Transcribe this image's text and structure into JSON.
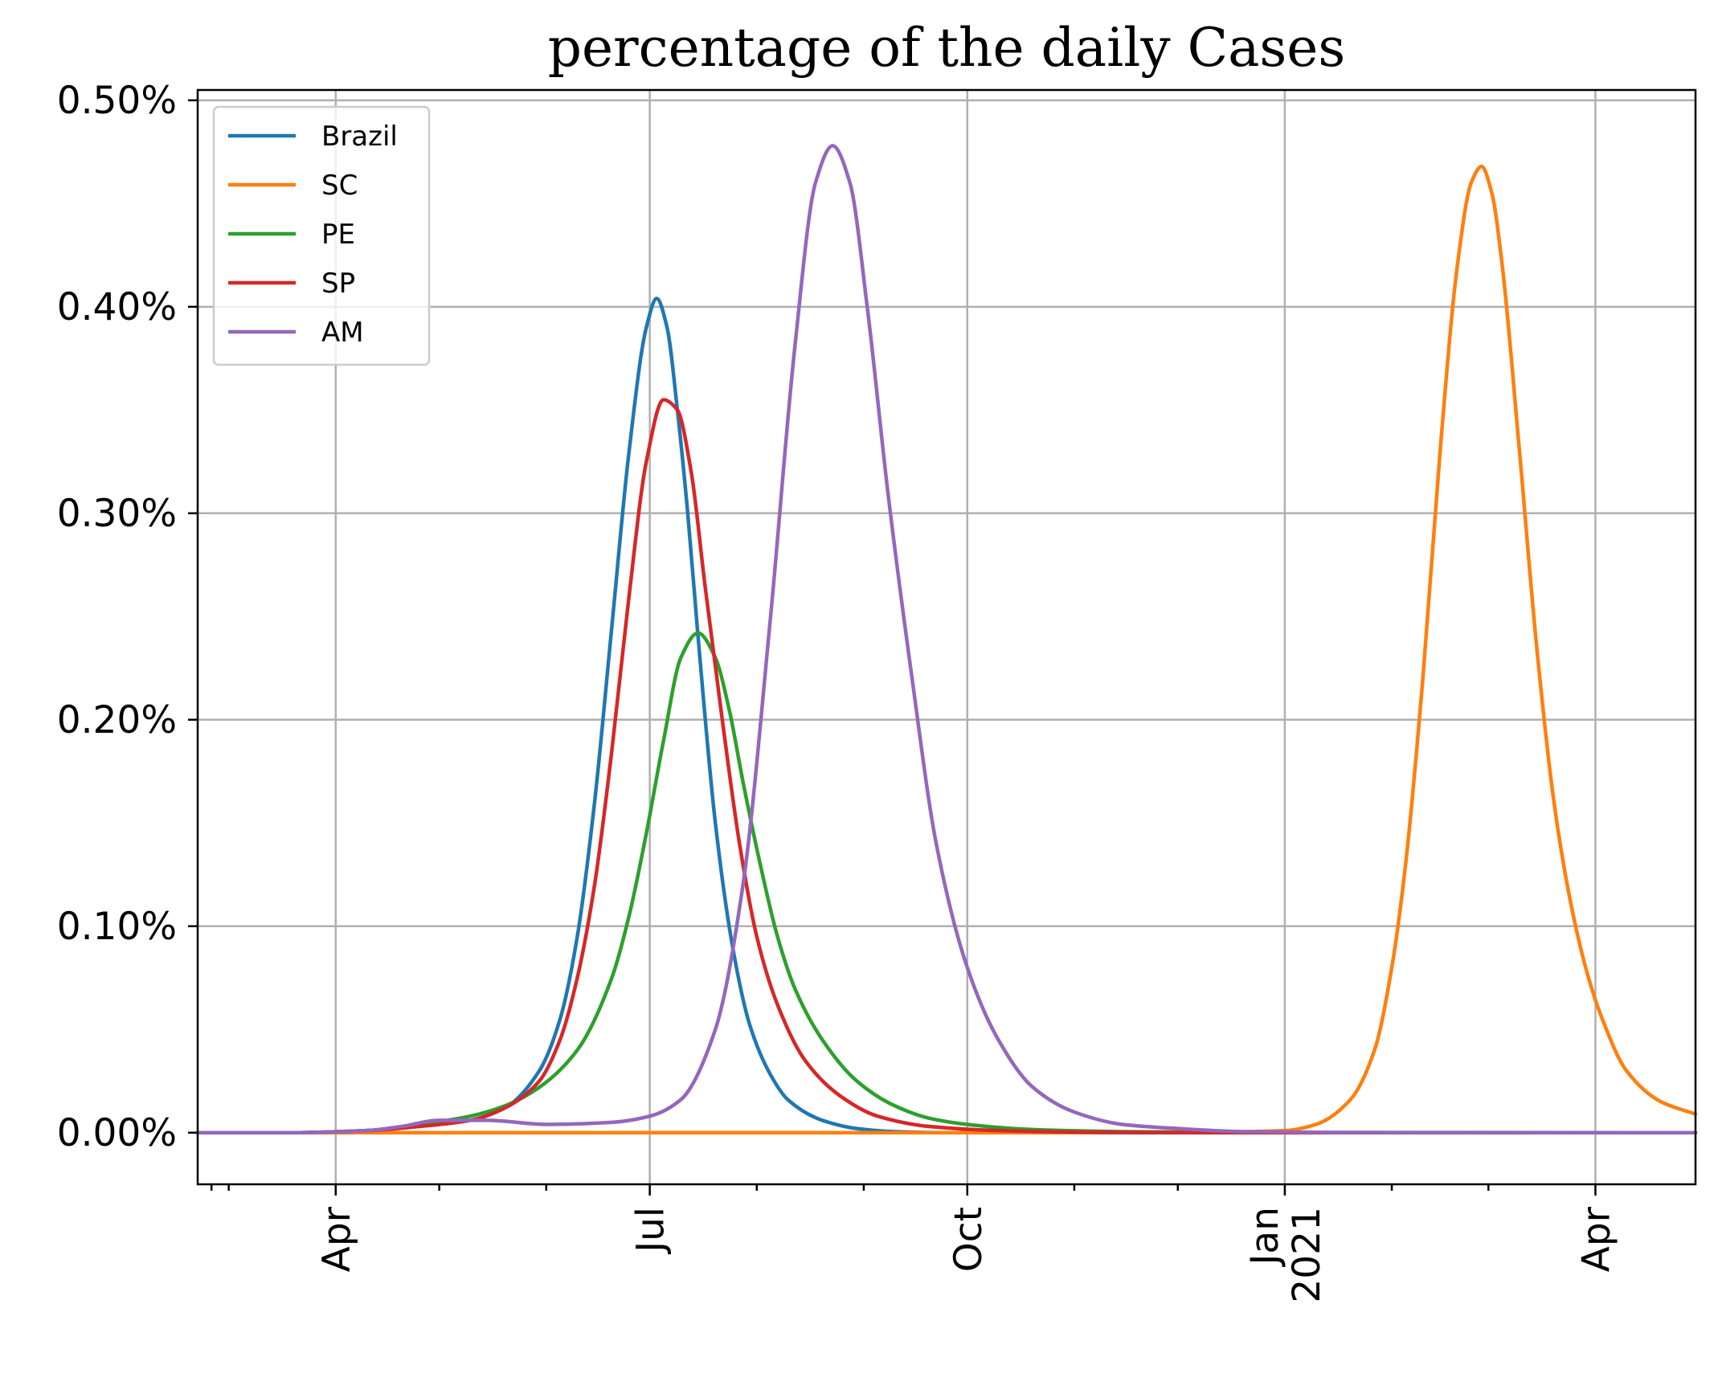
{
  "chart_data": {
    "type": "line",
    "title": "percentage of the daily Cases",
    "xlabel": "",
    "ylabel": "",
    "x_axis_type": "date",
    "xlim": [
      "2020-02-21",
      "2021-04-30"
    ],
    "ylim": [
      -0.025,
      0.505
    ],
    "y_unit": "%",
    "grid": true,
    "legend_position": "top-left",
    "x_major_ticks": [
      {
        "date": "2020-04-01",
        "label": "Apr"
      },
      {
        "date": "2020-07-01",
        "label": "Jul"
      },
      {
        "date": "2020-10-01",
        "label": "Oct"
      },
      {
        "date": "2021-01-01",
        "label": "Jan\n2021"
      },
      {
        "date": "2021-04-01",
        "label": "Apr"
      }
    ],
    "x_minor_ticks": [
      "2020-02-25",
      "2020-03-01",
      "2020-05-01",
      "2020-06-01",
      "2020-08-01",
      "2020-09-01",
      "2020-11-01",
      "2020-12-01",
      "2021-02-01",
      "2021-03-01"
    ],
    "y_ticks": [
      {
        "value": 0.0,
        "label": "0.00%"
      },
      {
        "value": 0.1,
        "label": "0.10%"
      },
      {
        "value": 0.2,
        "label": "0.20%"
      },
      {
        "value": 0.3,
        "label": "0.30%"
      },
      {
        "value": 0.4,
        "label": "0.40%"
      },
      {
        "value": 0.5,
        "label": "0.50%"
      }
    ],
    "series": [
      {
        "name": "Brazil",
        "color": "#1f77b4",
        "x": [
          "2020-02-21",
          "2020-03-20",
          "2020-04-10",
          "2020-04-25",
          "2020-05-10",
          "2020-05-20",
          "2020-05-30",
          "2020-06-05",
          "2020-06-10",
          "2020-06-15",
          "2020-06-20",
          "2020-06-25",
          "2020-06-30",
          "2020-07-03",
          "2020-07-06",
          "2020-07-09",
          "2020-07-12",
          "2020-07-15",
          "2020-07-20",
          "2020-07-25",
          "2020-07-30",
          "2020-08-05",
          "2020-08-10",
          "2020-08-20",
          "2020-08-30",
          "2020-09-10",
          "2020-09-25",
          "2020-10-15",
          "2020-11-15",
          "2021-01-01",
          "2021-04-30"
        ],
        "y": [
          0.0,
          0.0,
          0.001,
          0.003,
          0.006,
          0.012,
          0.03,
          0.055,
          0.095,
          0.16,
          0.245,
          0.33,
          0.39,
          0.404,
          0.39,
          0.35,
          0.3,
          0.24,
          0.15,
          0.09,
          0.052,
          0.028,
          0.016,
          0.006,
          0.002,
          0.0005,
          0.0,
          0.0,
          0.0,
          0.0,
          0.0
        ]
      },
      {
        "name": "SC",
        "color": "#ff7f0e",
        "x": [
          "2020-02-21",
          "2020-11-01",
          "2020-12-20",
          "2021-01-01",
          "2021-01-10",
          "2021-01-20",
          "2021-01-27",
          "2021-02-01",
          "2021-02-05",
          "2021-02-10",
          "2021-02-15",
          "2021-02-20",
          "2021-02-24",
          "2021-02-27",
          "2021-03-02",
          "2021-03-05",
          "2021-03-10",
          "2021-03-15",
          "2021-03-20",
          "2021-03-25",
          "2021-03-30",
          "2021-04-03",
          "2021-04-10",
          "2021-04-20",
          "2021-04-30"
        ],
        "y": [
          0.0,
          0.0,
          0.0005,
          0.001,
          0.004,
          0.016,
          0.04,
          0.08,
          0.13,
          0.22,
          0.33,
          0.42,
          0.46,
          0.468,
          0.455,
          0.42,
          0.33,
          0.235,
          0.16,
          0.11,
          0.075,
          0.055,
          0.03,
          0.015,
          0.009
        ]
      },
      {
        "name": "PE",
        "color": "#2ca02c",
        "x": [
          "2020-02-21",
          "2020-03-20",
          "2020-04-10",
          "2020-04-25",
          "2020-05-10",
          "2020-05-20",
          "2020-05-30",
          "2020-06-10",
          "2020-06-20",
          "2020-06-25",
          "2020-06-30",
          "2020-07-05",
          "2020-07-10",
          "2020-07-15",
          "2020-07-20",
          "2020-07-24",
          "2020-07-28",
          "2020-08-02",
          "2020-08-07",
          "2020-08-12",
          "2020-08-20",
          "2020-08-30",
          "2020-09-10",
          "2020-09-20",
          "2020-10-01",
          "2020-10-20",
          "2020-11-15",
          "2020-12-15",
          "2021-04-30"
        ],
        "y": [
          0.0,
          0.0,
          0.001,
          0.004,
          0.008,
          0.013,
          0.022,
          0.04,
          0.075,
          0.105,
          0.145,
          0.19,
          0.23,
          0.242,
          0.23,
          0.205,
          0.17,
          0.13,
          0.095,
          0.07,
          0.045,
          0.025,
          0.013,
          0.007,
          0.004,
          0.0015,
          0.0005,
          0.0001,
          0.0
        ]
      },
      {
        "name": "SP",
        "color": "#d62728",
        "x": [
          "2020-02-21",
          "2020-03-20",
          "2020-04-10",
          "2020-04-25",
          "2020-05-10",
          "2020-05-20",
          "2020-05-30",
          "2020-06-05",
          "2020-06-10",
          "2020-06-15",
          "2020-06-20",
          "2020-06-25",
          "2020-06-30",
          "2020-07-05",
          "2020-07-09",
          "2020-07-13",
          "2020-07-17",
          "2020-07-22",
          "2020-07-27",
          "2020-08-01",
          "2020-08-07",
          "2020-08-15",
          "2020-08-25",
          "2020-09-05",
          "2020-09-20",
          "2020-10-10",
          "2020-11-10",
          "2020-12-15",
          "2021-04-30"
        ],
        "y": [
          0.0,
          0.0,
          0.001,
          0.003,
          0.006,
          0.012,
          0.025,
          0.045,
          0.075,
          0.12,
          0.185,
          0.26,
          0.325,
          0.355,
          0.35,
          0.32,
          0.265,
          0.2,
          0.14,
          0.095,
          0.062,
          0.035,
          0.018,
          0.008,
          0.003,
          0.001,
          0.0002,
          0.0,
          0.0
        ]
      },
      {
        "name": "AM",
        "color": "#9467bd",
        "x": [
          "2020-02-21",
          "2020-03-20",
          "2020-04-10",
          "2020-04-20",
          "2020-05-01",
          "2020-05-15",
          "2020-06-01",
          "2020-06-20",
          "2020-07-01",
          "2020-07-10",
          "2020-07-20",
          "2020-07-28",
          "2020-08-05",
          "2020-08-12",
          "2020-08-18",
          "2020-08-23",
          "2020-08-28",
          "2020-09-02",
          "2020-09-08",
          "2020-09-15",
          "2020-09-22",
          "2020-10-01",
          "2020-10-10",
          "2020-10-20",
          "2020-11-01",
          "2020-11-15",
          "2020-12-01",
          "2020-12-20",
          "2021-01-15",
          "2021-04-30"
        ],
        "y": [
          0.0,
          0.0,
          0.001,
          0.003,
          0.006,
          0.006,
          0.004,
          0.005,
          0.008,
          0.016,
          0.05,
          0.12,
          0.25,
          0.38,
          0.46,
          0.478,
          0.46,
          0.4,
          0.31,
          0.22,
          0.14,
          0.08,
          0.045,
          0.022,
          0.01,
          0.004,
          0.002,
          0.0005,
          0.0001,
          0.0
        ]
      }
    ]
  }
}
